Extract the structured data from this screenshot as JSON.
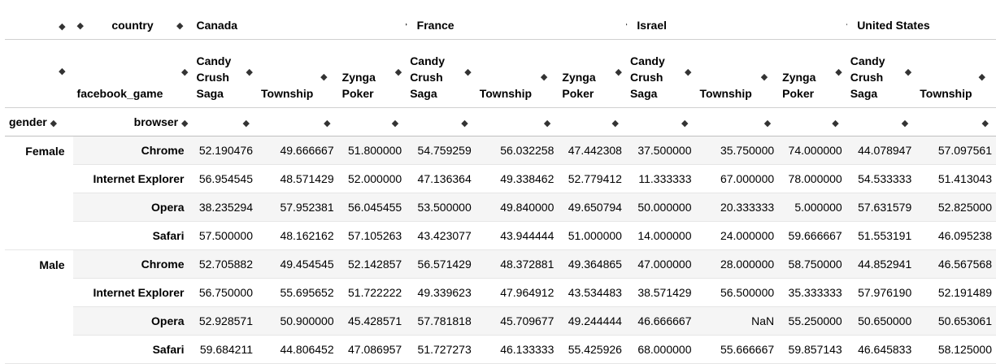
{
  "headers": {
    "row1": {
      "level_name": "country",
      "countries": [
        "Canada",
        "France",
        "Israel",
        "United States"
      ]
    },
    "row2": {
      "level_name": "facebook_game",
      "games": [
        "Candy Crush Saga",
        "Township",
        "Zynga Poker"
      ]
    },
    "row3": {
      "index_names": [
        "gender",
        "browser"
      ]
    },
    "sort_glyph": "◆"
  },
  "rows": [
    {
      "gender": "Female",
      "browser": "Chrome",
      "values": [
        "52.190476",
        "49.666667",
        "51.800000",
        "54.759259",
        "56.032258",
        "47.442308",
        "37.500000",
        "35.750000",
        "74.000000",
        "44.078947",
        "57.097561"
      ]
    },
    {
      "gender": "",
      "browser": "Internet Explorer",
      "values": [
        "56.954545",
        "48.571429",
        "52.000000",
        "47.136364",
        "49.338462",
        "52.779412",
        "11.333333",
        "67.000000",
        "78.000000",
        "54.533333",
        "51.413043"
      ]
    },
    {
      "gender": "",
      "browser": "Opera",
      "values": [
        "38.235294",
        "57.952381",
        "56.045455",
        "53.500000",
        "49.840000",
        "49.650794",
        "50.000000",
        "20.333333",
        "5.000000",
        "57.631579",
        "52.825000"
      ]
    },
    {
      "gender": "",
      "browser": "Safari",
      "values": [
        "57.500000",
        "48.162162",
        "57.105263",
        "43.423077",
        "43.944444",
        "51.000000",
        "14.000000",
        "24.000000",
        "59.666667",
        "51.553191",
        "46.095238"
      ]
    },
    {
      "gender": "Male",
      "browser": "Chrome",
      "values": [
        "52.705882",
        "49.454545",
        "52.142857",
        "56.571429",
        "48.372881",
        "49.364865",
        "47.000000",
        "28.000000",
        "58.750000",
        "44.852941",
        "46.567568"
      ]
    },
    {
      "gender": "",
      "browser": "Internet Explorer",
      "values": [
        "56.750000",
        "55.695652",
        "51.722222",
        "49.339623",
        "47.964912",
        "43.534483",
        "38.571429",
        "56.500000",
        "35.333333",
        "57.976190",
        "52.191489"
      ]
    },
    {
      "gender": "",
      "browser": "Opera",
      "values": [
        "52.928571",
        "50.900000",
        "45.428571",
        "57.781818",
        "45.709677",
        "49.244444",
        "46.666667",
        "NaN",
        "55.250000",
        "50.650000",
        "50.653061"
      ]
    },
    {
      "gender": "",
      "browser": "Safari",
      "values": [
        "59.684211",
        "44.806452",
        "47.086957",
        "51.727273",
        "46.133333",
        "55.425926",
        "68.000000",
        "55.666667",
        "59.857143",
        "46.645833",
        "58.125000"
      ]
    }
  ]
}
